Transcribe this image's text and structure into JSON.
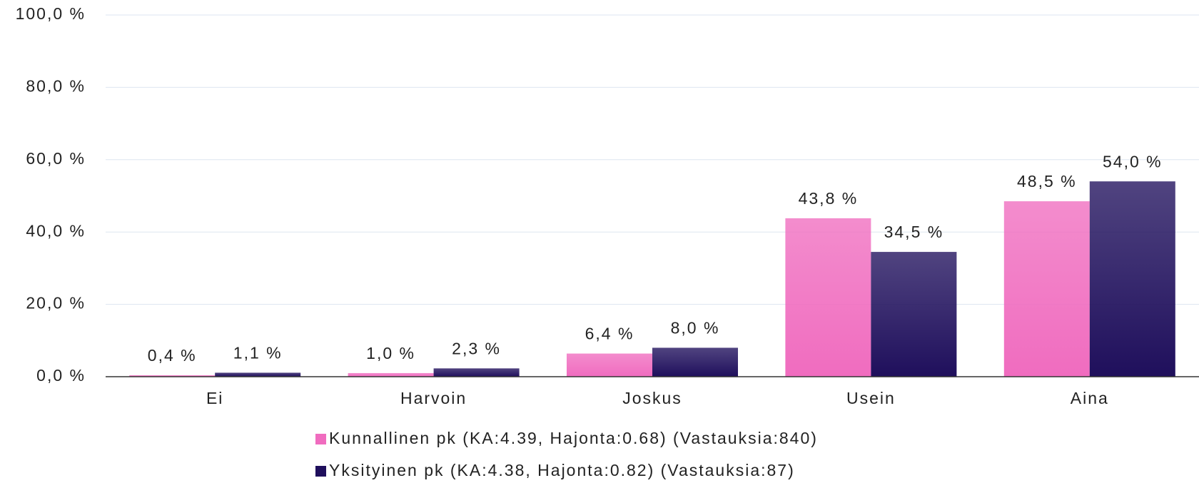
{
  "chart_data": {
    "type": "bar",
    "categories": [
      "Ei",
      "Harvoin",
      "Joskus",
      "Usein",
      "Aina"
    ],
    "series": [
      {
        "name": "Kunnallinen pk (KA:4.39, Hajonta:0.68) (Vastauksia:840)",
        "color": "#f06cbf",
        "values": [
          0.4,
          1.0,
          6.4,
          43.8,
          48.5
        ],
        "value_labels": [
          "0,4 %",
          "1,0 %",
          "6,4 %",
          "43,8 %",
          "48,5 %"
        ]
      },
      {
        "name": "Yksityinen pk (KA:4.38, Hajonta:0.82) (Vastauksia:87)",
        "color": "#1f0f5c",
        "values": [
          1.1,
          2.3,
          8.0,
          34.5,
          54.0
        ],
        "value_labels": [
          "1,1 %",
          "2,3 %",
          "8,0 %",
          "34,5 %",
          "54,0 %"
        ]
      }
    ],
    "ylim": [
      0,
      100
    ],
    "yticks": [
      {
        "value": 0,
        "label": "0,0 %"
      },
      {
        "value": 20,
        "label": "20,0 %"
      },
      {
        "value": 40,
        "label": "40,0 %"
      },
      {
        "value": 60,
        "label": "60,0 %"
      },
      {
        "value": 80,
        "label": "80,0 %"
      },
      {
        "value": 100,
        "label": "100,0 %"
      }
    ],
    "grid": true
  }
}
